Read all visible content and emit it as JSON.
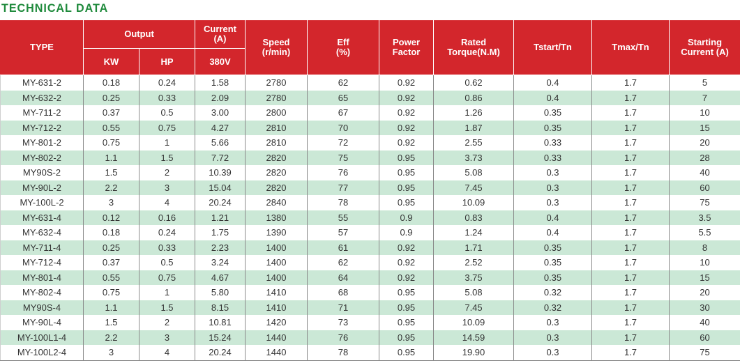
{
  "title": "TECHNICAL DATA",
  "colors": {
    "header_bg": "#d3262c",
    "title": "#1f8a3c",
    "stripe": "#cbe8d6"
  },
  "header": {
    "type": "TYPE",
    "output": "Output",
    "current": "Current\n(A)",
    "speed": "Speed\n(r/min)",
    "eff": "Eff\n(%)",
    "power_factor": "Power\nFactor",
    "rated_torque": "Rated\nTorque(N.M)",
    "tstart": "Tstart/Tn",
    "tmax": "Tmax/Tn",
    "starting_current": "Starting\nCurrent (A)",
    "kw": "KW",
    "hp": "HP",
    "voltage": "380V"
  },
  "rows": [
    [
      "MY-631-2",
      "0.18",
      "0.24",
      "1.58",
      "2780",
      "62",
      "0.92",
      "0.62",
      "0.4",
      "1.7",
      "5"
    ],
    [
      "MY-632-2",
      "0.25",
      "0.33",
      "2.09",
      "2780",
      "65",
      "0.92",
      "0.86",
      "0.4",
      "1.7",
      "7"
    ],
    [
      "MY-711-2",
      "0.37",
      "0.5",
      "3.00",
      "2800",
      "67",
      "0.92",
      "1.26",
      "0.35",
      "1.7",
      "10"
    ],
    [
      "MY-712-2",
      "0.55",
      "0.75",
      "4.27",
      "2810",
      "70",
      "0.92",
      "1.87",
      "0.35",
      "1.7",
      "15"
    ],
    [
      "MY-801-2",
      "0.75",
      "1",
      "5.66",
      "2810",
      "72",
      "0.92",
      "2.55",
      "0.33",
      "1.7",
      "20"
    ],
    [
      "MY-802-2",
      "1.1",
      "1.5",
      "7.72",
      "2820",
      "75",
      "0.95",
      "3.73",
      "0.33",
      "1.7",
      "28"
    ],
    [
      "MY90S-2",
      "1.5",
      "2",
      "10.39",
      "2820",
      "76",
      "0.95",
      "5.08",
      "0.3",
      "1.7",
      "40"
    ],
    [
      "MY-90L-2",
      "2.2",
      "3",
      "15.04",
      "2820",
      "77",
      "0.95",
      "7.45",
      "0.3",
      "1.7",
      "60"
    ],
    [
      "MY-100L-2",
      "3",
      "4",
      "20.24",
      "2840",
      "78",
      "0.95",
      "10.09",
      "0.3",
      "1.7",
      "75"
    ],
    [
      "MY-631-4",
      "0.12",
      "0.16",
      "1.21",
      "1380",
      "55",
      "0.9",
      "0.83",
      "0.4",
      "1.7",
      "3.5"
    ],
    [
      "MY-632-4",
      "0.18",
      "0.24",
      "1.75",
      "1390",
      "57",
      "0.9",
      "1.24",
      "0.4",
      "1.7",
      "5.5"
    ],
    [
      "MY-711-4",
      "0.25",
      "0.33",
      "2.23",
      "1400",
      "61",
      "0.92",
      "1.71",
      "0.35",
      "1.7",
      "8"
    ],
    [
      "MY-712-4",
      "0.37",
      "0.5",
      "3.24",
      "1400",
      "62",
      "0.92",
      "2.52",
      "0.35",
      "1.7",
      "10"
    ],
    [
      "MY-801-4",
      "0.55",
      "0.75",
      "4.67",
      "1400",
      "64",
      "0.92",
      "3.75",
      "0.35",
      "1.7",
      "15"
    ],
    [
      "MY-802-4",
      "0.75",
      "1",
      "5.80",
      "1410",
      "68",
      "0.95",
      "5.08",
      "0.32",
      "1.7",
      "20"
    ],
    [
      "MY90S-4",
      "1.1",
      "1.5",
      "8.15",
      "1410",
      "71",
      "0.95",
      "7.45",
      "0.32",
      "1.7",
      "30"
    ],
    [
      "MY-90L-4",
      "1.5",
      "2",
      "10.81",
      "1420",
      "73",
      "0.95",
      "10.09",
      "0.3",
      "1.7",
      "40"
    ],
    [
      "MY-100L1-4",
      "2.2",
      "3",
      "15.24",
      "1440",
      "76",
      "0.95",
      "14.59",
      "0.3",
      "1.7",
      "60"
    ],
    [
      "MY-100L2-4",
      "3",
      "4",
      "20.24",
      "1440",
      "78",
      "0.95",
      "19.90",
      "0.3",
      "1.7",
      "75"
    ]
  ]
}
